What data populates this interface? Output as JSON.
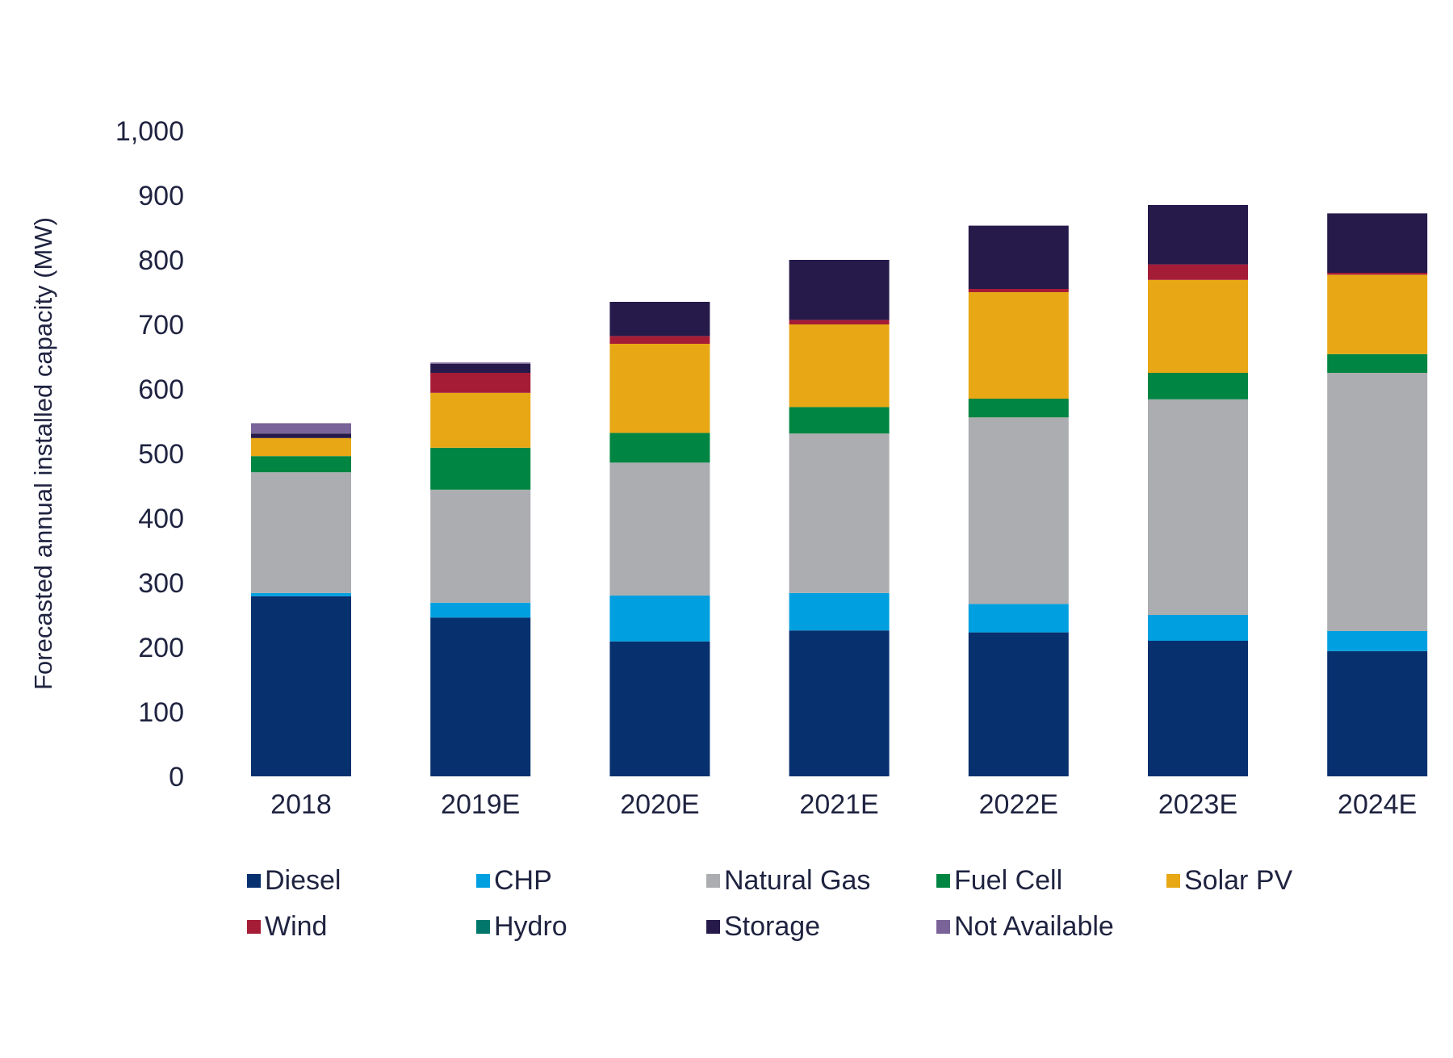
{
  "chart_data": {
    "type": "bar",
    "stacked": true,
    "title": "",
    "xlabel": "",
    "ylabel": "Forecasted annual installed capacity (MW)",
    "ylim": [
      0,
      1000
    ],
    "yticks": [
      0,
      100,
      200,
      300,
      400,
      500,
      600,
      700,
      800,
      900,
      1000
    ],
    "ytick_labels": [
      "0",
      "100",
      "200",
      "300",
      "400",
      "500",
      "600",
      "700",
      "800",
      "900",
      "1,000"
    ],
    "grid": false,
    "legend_position": "bottom",
    "categories": [
      "2018",
      "2019E",
      "2020E",
      "2021E",
      "2022E",
      "2023E",
      "2024E"
    ],
    "series": [
      {
        "name": "Diesel",
        "color": "#07306f",
        "values": [
          279,
          246,
          209,
          226,
          223,
          210,
          194
        ]
      },
      {
        "name": "CHP",
        "color": "#00a0e0",
        "values": [
          5,
          23,
          71,
          58,
          44,
          40,
          31
        ]
      },
      {
        "name": "Natural Gas",
        "color": "#acadb0",
        "values": [
          187,
          175,
          206,
          247,
          289,
          334,
          400
        ]
      },
      {
        "name": "Fuel Cell",
        "color": "#008542",
        "values": [
          25,
          65,
          46,
          41,
          29,
          41,
          29
        ]
      },
      {
        "name": "Solar PV",
        "color": "#e8a714",
        "values": [
          28,
          85,
          138,
          128,
          165,
          144,
          123
        ]
      },
      {
        "name": "Wind",
        "color": "#a51c36",
        "values": [
          0,
          31,
          12,
          7,
          5,
          24,
          3
        ]
      },
      {
        "name": "Hydro",
        "color": "#00776a",
        "values": [
          0,
          0,
          0,
          0,
          0,
          0,
          0
        ]
      },
      {
        "name": "Storage",
        "color": "#261a4a",
        "values": [
          7,
          14,
          53,
          93,
          98,
          92,
          92
        ]
      },
      {
        "name": "Not Available",
        "color": "#7a6399",
        "values": [
          16,
          2,
          0,
          0,
          0,
          0,
          0
        ]
      }
    ]
  }
}
